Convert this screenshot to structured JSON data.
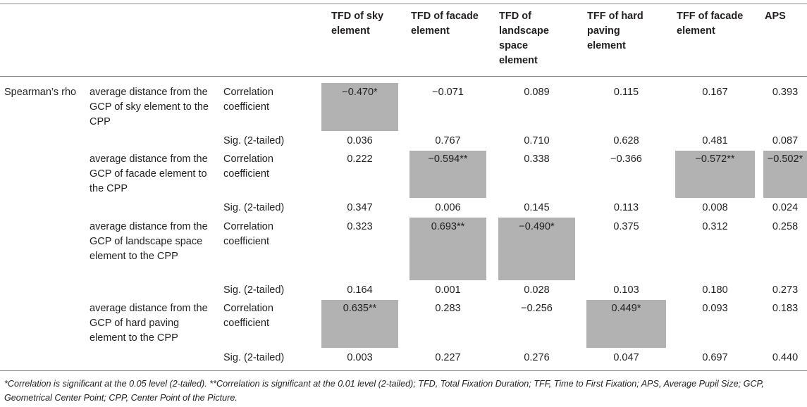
{
  "table": {
    "columns": [
      "TFD of sky element",
      "TFD of facade element",
      "TFD of landscape space element",
      "TFF of hard paving element",
      "TFF of facade element",
      "APS"
    ],
    "method_label": "Spearman’s rho",
    "groups": [
      {
        "label": "average distance from the GCP of sky element to the CPP",
        "corr_label": "Correlation coefficient",
        "sig_label": "Sig. (2-tailed)",
        "corr": [
          "−0.470*",
          "−0.071",
          "0.089",
          "0.115",
          "0.167",
          "0.393"
        ],
        "sig": [
          "0.036",
          "0.767",
          "0.710",
          "0.628",
          "0.481",
          "0.087"
        ]
      },
      {
        "label": "average distance from the GCP of facade element to the CPP",
        "corr_label": "Correlation coefficient",
        "sig_label": "Sig. (2-tailed)",
        "corr": [
          "0.222",
          "−0.594**",
          "0.338",
          "−0.366",
          "−0.572**",
          "−0.502*"
        ],
        "sig": [
          "0.347",
          "0.006",
          "0.145",
          "0.113",
          "0.008",
          "0.024"
        ]
      },
      {
        "label": "average distance from the GCP of landscape space element to the CPP",
        "corr_label": "Correlation coefficient",
        "sig_label": "Sig. (2-tailed)",
        "corr": [
          "0.323",
          "0.693**",
          "−0.490*",
          "0.375",
          "0.312",
          "0.258"
        ],
        "sig": [
          "0.164",
          "0.001",
          "0.028",
          "0.103",
          "0.180",
          "0.273"
        ]
      },
      {
        "label": "average distance from the GCP of hard paving element to the CPP",
        "corr_label": "Correlation coefficient",
        "sig_label": "Sig. (2-tailed)",
        "corr": [
          "0.635**",
          "0.283",
          "−0.256",
          "0.449*",
          "0.093",
          "0.183"
        ],
        "sig": [
          "0.003",
          "0.227",
          "0.276",
          "0.047",
          "0.697",
          "0.440"
        ]
      }
    ],
    "highlight_color": "#b2b2b2"
  },
  "footnote": "*Correlation is significant at the 0.05 level (2-tailed). **Correlation is significant at the 0.01 level (2-tailed); TFD, Total Fixation Duration; TFF, Time to First Fixation; APS, Average Pupil Size; GCP, Geometrical Center Point; CPP, Center Point of the Picture."
}
